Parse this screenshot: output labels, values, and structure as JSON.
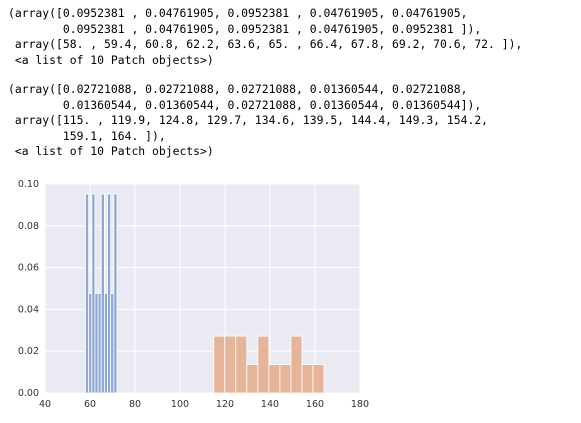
{
  "outputs": [
    {
      "lines": [
        "(array([0.0952381 , 0.04761905, 0.0952381 , 0.04761905, 0.04761905,",
        "        0.0952381 , 0.04761905, 0.0952381 , 0.04761905, 0.0952381 ]),",
        " array([58. , 59.4, 60.8, 62.2, 63.6, 65. , 66.4, 67.8, 69.2, 70.6, 72. ]),",
        " <a list of 10 Patch objects>)"
      ]
    },
    {
      "lines": [
        "(array([0.02721088, 0.02721088, 0.02721088, 0.01360544, 0.02721088,",
        "        0.01360544, 0.01360544, 0.02721088, 0.01360544, 0.01360544]),",
        " array([115. , 119.9, 124.8, 129.7, 134.6, 139.5, 144.4, 149.3, 154.2,",
        "        159.1, 164. ]),",
        " <a list of 10 Patch objects>)"
      ]
    }
  ],
  "chart_data": {
    "type": "histogram",
    "title": "",
    "xlabel": "",
    "ylabel": "",
    "xlim": [
      40,
      180
    ],
    "ylim": [
      0,
      0.1
    ],
    "xticks": [
      40,
      60,
      80,
      100,
      120,
      140,
      160,
      180
    ],
    "yticks": [
      0.0,
      0.02,
      0.04,
      0.06,
      0.08,
      0.1
    ],
    "ytick_labels": [
      "0.00",
      "0.02",
      "0.04",
      "0.06",
      "0.08",
      "0.10"
    ],
    "grid": true,
    "background": "#eaeaf2",
    "series": [
      {
        "color": "#91a8d4",
        "edges": [
          58,
          59.4,
          60.8,
          62.2,
          63.6,
          65,
          66.4,
          67.8,
          69.2,
          70.6,
          72
        ],
        "heights": [
          0.0952381,
          0.04761905,
          0.0952381,
          0.04761905,
          0.04761905,
          0.0952381,
          0.04761905,
          0.0952381,
          0.04761905,
          0.0952381
        ]
      },
      {
        "color": "#e6b599",
        "edges": [
          115,
          119.9,
          124.8,
          129.7,
          134.6,
          139.5,
          144.4,
          149.3,
          154.2,
          159.1,
          164
        ],
        "heights": [
          0.02721088,
          0.02721088,
          0.02721088,
          0.01360544,
          0.02721088,
          0.01360544,
          0.01360544,
          0.02721088,
          0.01360544,
          0.01360544
        ]
      }
    ]
  }
}
